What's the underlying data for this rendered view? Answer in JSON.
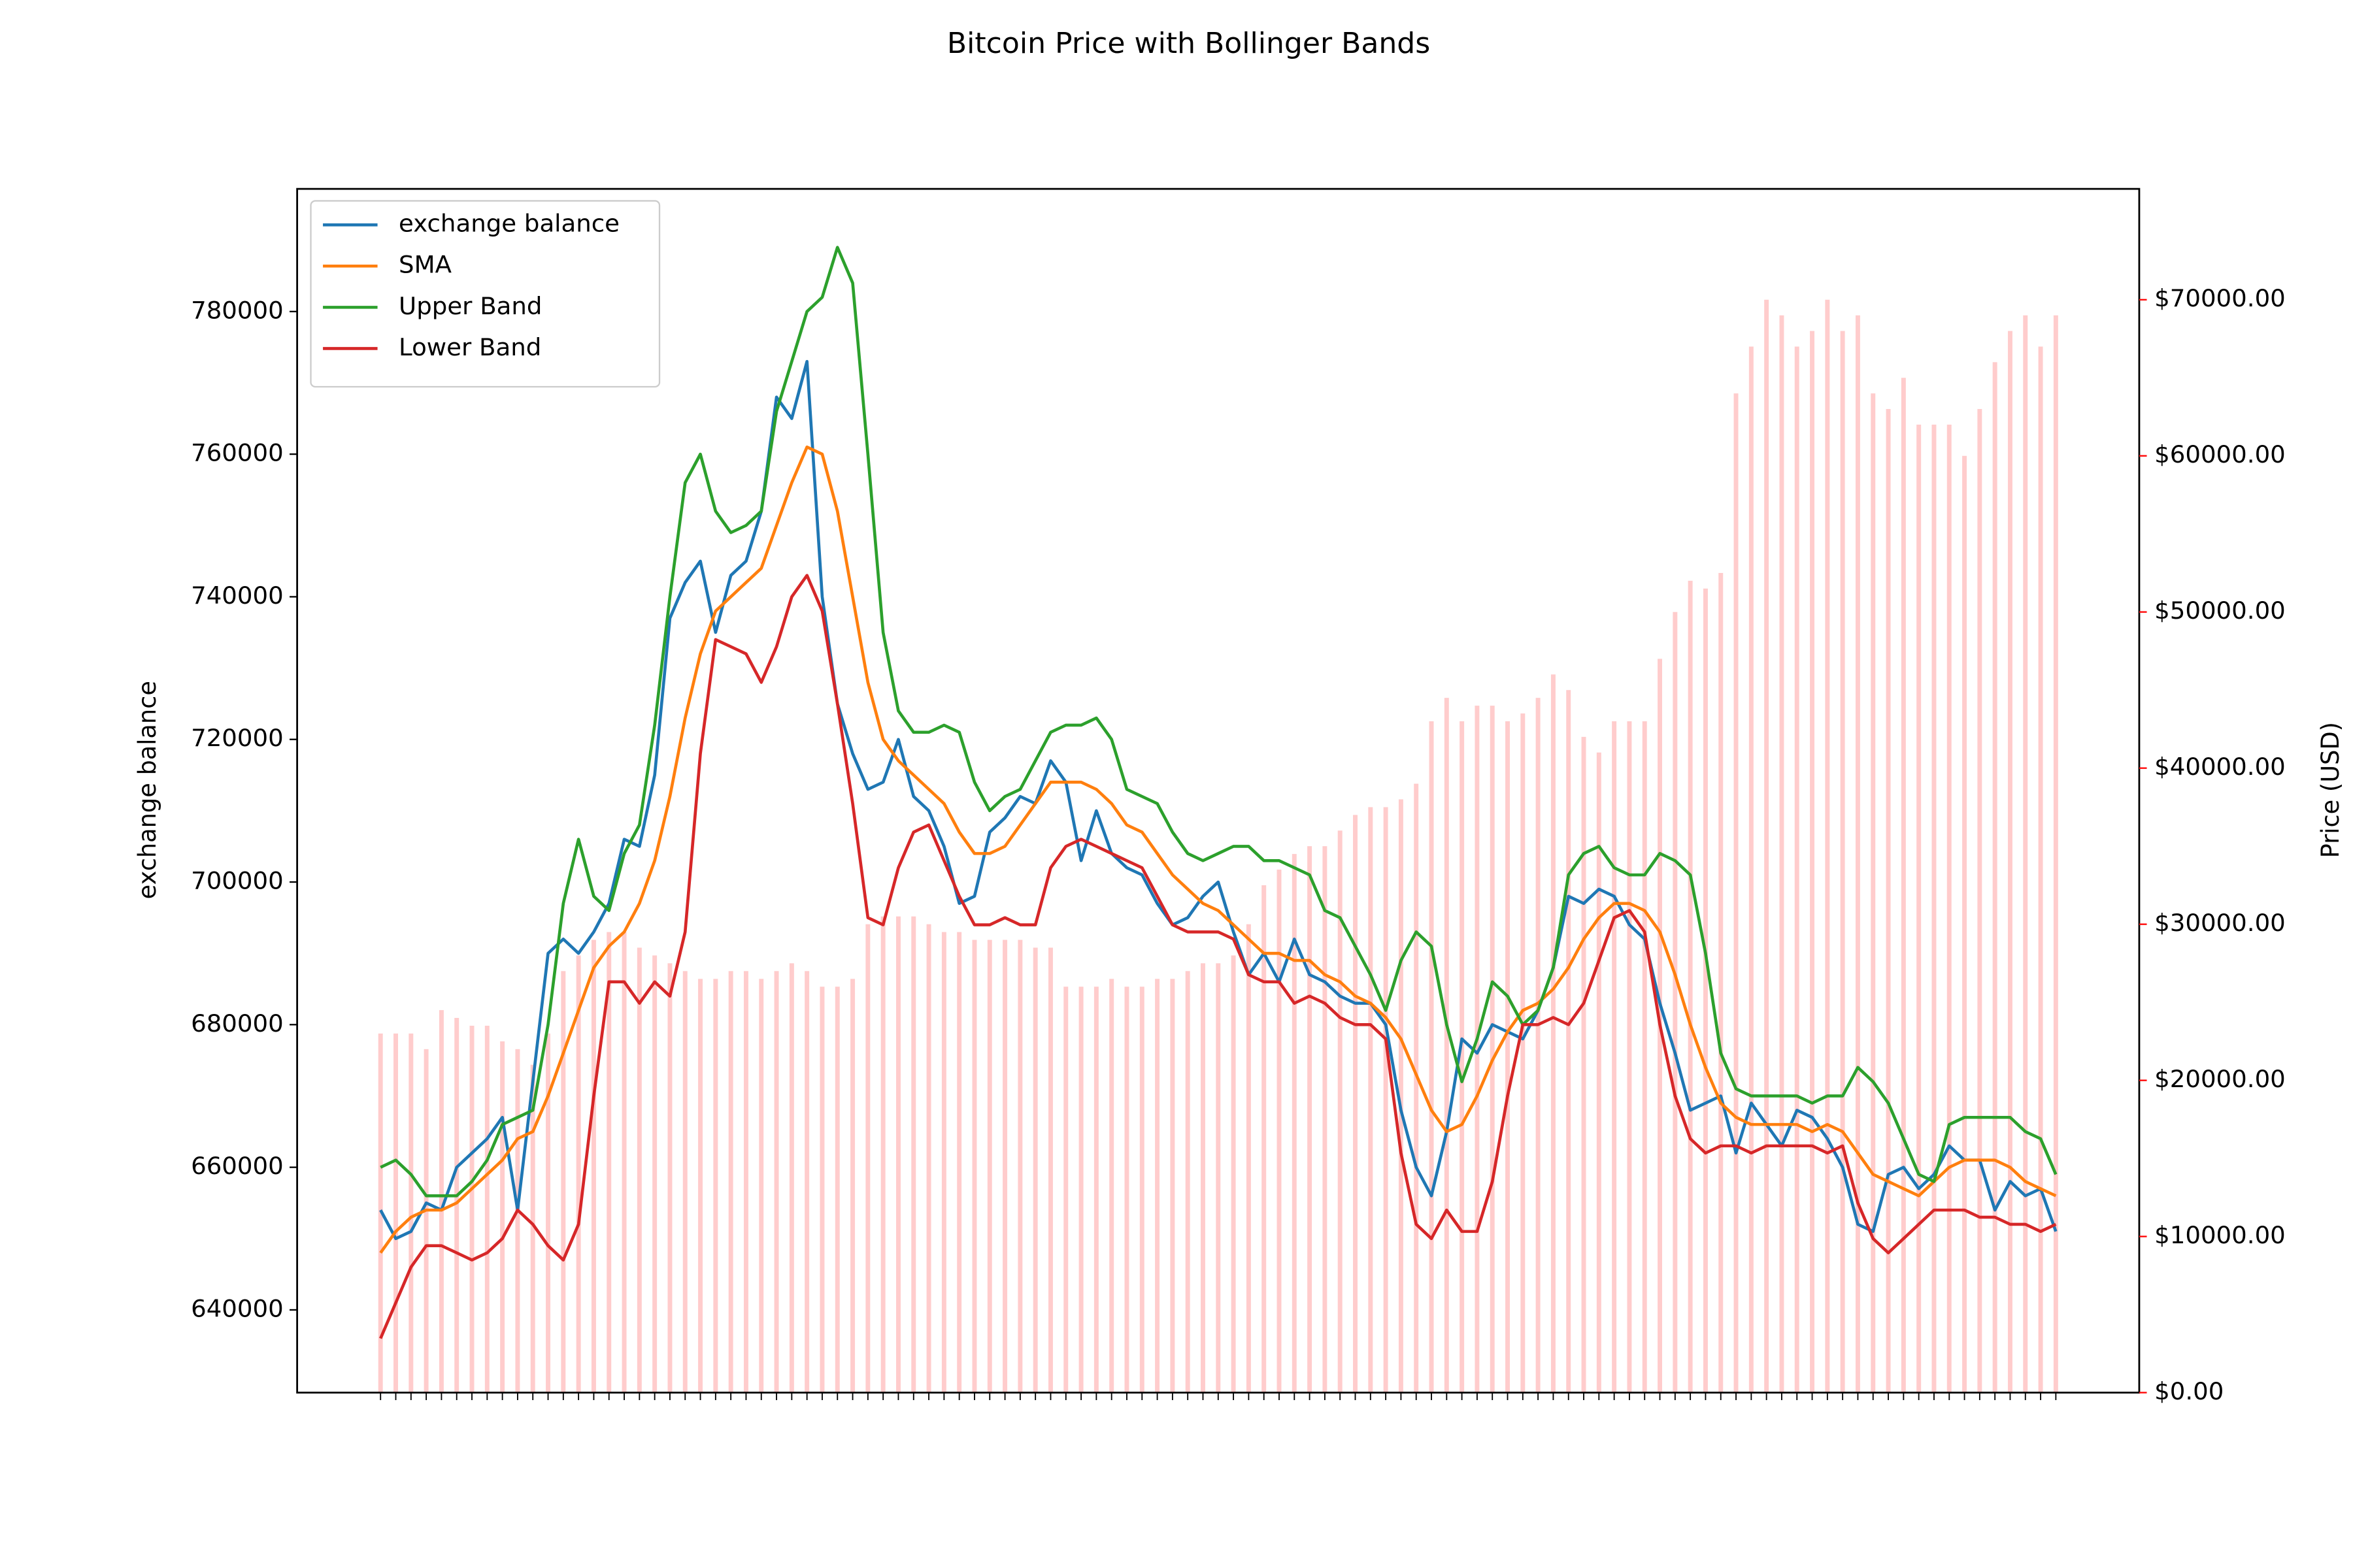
{
  "chart_data": {
    "type": "line",
    "title": "Bitcoin Price with Bollinger Bands",
    "ylabel": "exchange balance",
    "y2label": "Price (USD)",
    "legend": "upper left",
    "categories": [
      null,
      null,
      null,
      null,
      null,
      null,
      null,
      null,
      null,
      null,
      null,
      null,
      null,
      null,
      null,
      null,
      null,
      null,
      null,
      null,
      null,
      null,
      null,
      null,
      null,
      null,
      null,
      null,
      null,
      null,
      null,
      null,
      null,
      null,
      null,
      null,
      null,
      null,
      null,
      null,
      null,
      null,
      null,
      null,
      null,
      null,
      null,
      null,
      null,
      null,
      null,
      null,
      null,
      null,
      null,
      null,
      null,
      null,
      null,
      null,
      null,
      null,
      null,
      null,
      null,
      null,
      null,
      null,
      null,
      null,
      null,
      null,
      null,
      null,
      null,
      null,
      null,
      null,
      null,
      null,
      null,
      null,
      null,
      null,
      null,
      null,
      null,
      null,
      null,
      null,
      null,
      null,
      null,
      null,
      null,
      null,
      null,
      null,
      null,
      null,
      null,
      null,
      null,
      null,
      null,
      null,
      null,
      null,
      null,
      null,
      null
    ],
    "ylim": [
      628400,
      797200
    ],
    "yticks": [
      640000,
      660000,
      680000,
      700000,
      720000,
      740000,
      760000,
      780000
    ],
    "y2lim": [
      0,
      77100
    ],
    "y2ticks": [
      {
        "value": 0,
        "label": "$0.00"
      },
      {
        "value": 10000,
        "label": "$10000.00"
      },
      {
        "value": 20000,
        "label": "$20000.00"
      },
      {
        "value": 30000,
        "label": "$30000.00"
      },
      {
        "value": 40000,
        "label": "$40000.00"
      },
      {
        "value": 50000,
        "label": "$50000.00"
      },
      {
        "value": 60000,
        "label": "$60000.00"
      },
      {
        "value": 70000,
        "label": "$70000.00"
      }
    ],
    "y2color": "#ff0000",
    "series": [
      {
        "name": "exchange balance",
        "color": "#1f77b4",
        "values": [
          654000,
          650000,
          651000,
          655000,
          654000,
          660000,
          662000,
          664000,
          667000,
          654000,
          672000,
          690000,
          692000,
          690000,
          693000,
          697000,
          706000,
          705000,
          715000,
          737000,
          742000,
          745000,
          735000,
          743000,
          745000,
          752000,
          768000,
          765000,
          773000,
          740000,
          725000,
          718000,
          713000,
          714000,
          720000,
          712000,
          710000,
          705000,
          697000,
          698000,
          707000,
          709000,
          712000,
          711000,
          717000,
          714000,
          703000,
          710000,
          704000,
          702000,
          701000,
          697000,
          694000,
          695000,
          698000,
          700000,
          693000,
          687000,
          690000,
          686000,
          692000,
          687000,
          686000,
          684000,
          683000,
          683000,
          680000,
          668000,
          660000,
          656000,
          665000,
          678000,
          676000,
          680000,
          679000,
          678000,
          682000,
          688000,
          698000,
          697000,
          699000,
          698000,
          694000,
          692000,
          683000,
          676000,
          668000,
          669000,
          670000,
          662000,
          669000,
          666000,
          663000,
          668000,
          667000,
          664000,
          660000,
          652000,
          651000,
          659000,
          660000,
          657000,
          659000,
          663000,
          661000,
          661000,
          654000,
          658000,
          656000,
          657000,
          651000
        ]
      },
      {
        "name": "SMA",
        "color": "#ff7f0e",
        "values": [
          648000,
          651000,
          653000,
          654000,
          654000,
          655000,
          657000,
          659000,
          661000,
          664000,
          665000,
          670000,
          676000,
          682000,
          688000,
          691000,
          693000,
          697000,
          703000,
          712000,
          723000,
          732000,
          738000,
          740000,
          742000,
          744000,
          750000,
          756000,
          761000,
          760000,
          752000,
          740000,
          728000,
          720000,
          717000,
          715000,
          713000,
          711000,
          707000,
          704000,
          704000,
          705000,
          708000,
          711000,
          714000,
          714000,
          714000,
          713000,
          711000,
          708000,
          707000,
          704000,
          701000,
          699000,
          697000,
          696000,
          694000,
          692000,
          690000,
          690000,
          689000,
          689000,
          687000,
          686000,
          684000,
          683000,
          681000,
          678000,
          673000,
          668000,
          665000,
          666000,
          670000,
          675000,
          679000,
          682000,
          683000,
          685000,
          688000,
          692000,
          695000,
          697000,
          697000,
          696000,
          693000,
          687000,
          680000,
          674000,
          669000,
          667000,
          666000,
          666000,
          666000,
          666000,
          665000,
          666000,
          665000,
          662000,
          659000,
          658000,
          657000,
          656000,
          658000,
          660000,
          661000,
          661000,
          661000,
          660000,
          658000,
          657000,
          656000
        ]
      },
      {
        "name": "Upper Band",
        "color": "#2ca02c",
        "values": [
          660000,
          661000,
          659000,
          656000,
          656000,
          656000,
          658000,
          661000,
          666000,
          667000,
          668000,
          680000,
          697000,
          706000,
          698000,
          696000,
          704000,
          708000,
          722000,
          740000,
          756000,
          760000,
          752000,
          749000,
          750000,
          752000,
          766000,
          773000,
          780000,
          782000,
          789000,
          784000,
          760000,
          735000,
          724000,
          721000,
          721000,
          722000,
          721000,
          714000,
          710000,
          712000,
          713000,
          717000,
          721000,
          722000,
          722000,
          723000,
          720000,
          713000,
          712000,
          711000,
          707000,
          704000,
          703000,
          704000,
          705000,
          705000,
          703000,
          703000,
          702000,
          701000,
          696000,
          695000,
          691000,
          687000,
          682000,
          689000,
          693000,
          691000,
          680000,
          672000,
          678000,
          686000,
          684000,
          680000,
          682000,
          688000,
          701000,
          704000,
          705000,
          702000,
          701000,
          701000,
          704000,
          703000,
          701000,
          690000,
          676000,
          671000,
          670000,
          670000,
          670000,
          670000,
          669000,
          670000,
          670000,
          674000,
          672000,
          669000,
          664000,
          659000,
          658000,
          666000,
          667000,
          667000,
          667000,
          667000,
          665000,
          664000,
          659000
        ]
      },
      {
        "name": "Lower Band",
        "color": "#d62728",
        "values": [
          636000,
          641000,
          646000,
          649000,
          649000,
          648000,
          647000,
          648000,
          650000,
          654000,
          652000,
          649000,
          647000,
          652000,
          670000,
          686000,
          686000,
          683000,
          686000,
          684000,
          693000,
          718000,
          734000,
          733000,
          732000,
          728000,
          733000,
          740000,
          743000,
          738000,
          725000,
          711000,
          695000,
          694000,
          702000,
          707000,
          708000,
          703000,
          698000,
          694000,
          694000,
          695000,
          694000,
          694000,
          702000,
          705000,
          706000,
          705000,
          704000,
          703000,
          702000,
          698000,
          694000,
          693000,
          693000,
          693000,
          692000,
          687000,
          686000,
          686000,
          683000,
          684000,
          683000,
          681000,
          680000,
          680000,
          678000,
          662000,
          652000,
          650000,
          654000,
          651000,
          651000,
          658000,
          670000,
          680000,
          680000,
          681000,
          680000,
          683000,
          689000,
          695000,
          696000,
          693000,
          680000,
          670000,
          664000,
          662000,
          663000,
          663000,
          662000,
          663000,
          663000,
          663000,
          663000,
          662000,
          663000,
          655000,
          650000,
          648000,
          650000,
          652000,
          654000,
          654000,
          654000,
          653000,
          653000,
          652000,
          652000,
          651000,
          652000
        ]
      },
      {
        "type": "bar",
        "axis": "y2",
        "color": "#ffcccc",
        "values": [
          23000,
          23000,
          23000,
          22000,
          24500,
          24000,
          23500,
          23500,
          22500,
          22000,
          21000,
          23000,
          27000,
          28000,
          29000,
          29500,
          29500,
          28500,
          28000,
          27500,
          27000,
          26500,
          26500,
          27000,
          27000,
          26500,
          27000,
          27500,
          27000,
          26000,
          26000,
          26500,
          30000,
          30500,
          30500,
          30500,
          30000,
          29500,
          29500,
          29000,
          29000,
          29000,
          29000,
          28500,
          28500,
          26000,
          26000,
          26000,
          26500,
          26000,
          26000,
          26500,
          26500,
          27000,
          27500,
          27500,
          28000,
          30000,
          32500,
          33500,
          34500,
          35000,
          35000,
          36000,
          37000,
          37500,
          37500,
          38000,
          39000,
          43000,
          44500,
          43000,
          44000,
          44000,
          43000,
          43500,
          44500,
          46000,
          45000,
          42000,
          41000,
          43000,
          43000,
          43000,
          47000,
          50000,
          52000,
          51500,
          52500,
          64000,
          67000,
          70000,
          69000,
          67000,
          68000,
          70000,
          68000,
          69000,
          64000,
          63000,
          65000,
          62000,
          62000,
          62000,
          60000,
          63000,
          66000,
          68000,
          69000,
          67000,
          69000
        ]
      }
    ]
  }
}
